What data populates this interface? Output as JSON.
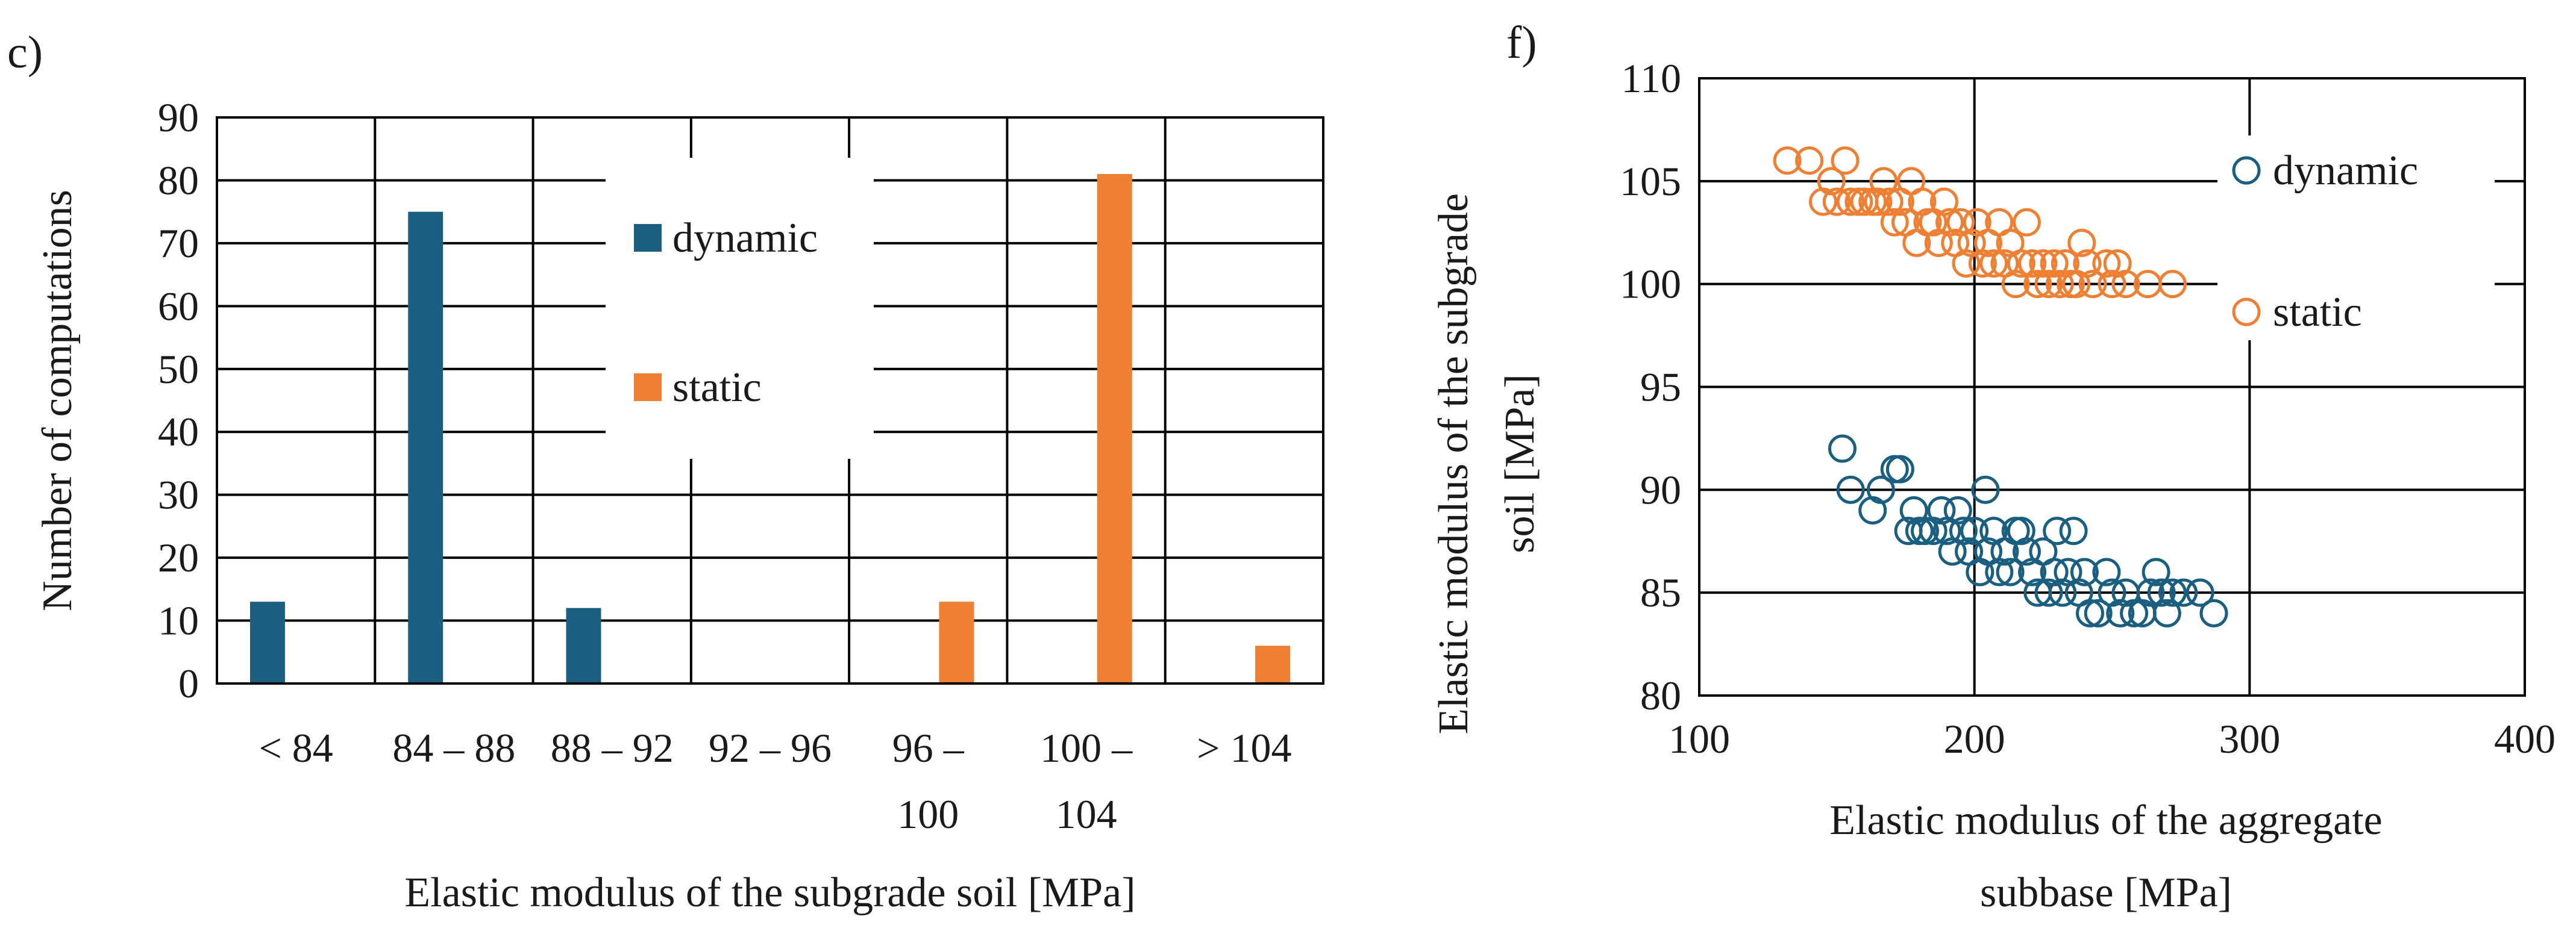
{
  "colors": {
    "dynamic": "#1a5e80",
    "static": "#ee7f33",
    "grid": "#000000"
  },
  "chart_data": [
    {
      "panel": "c)",
      "type": "bar",
      "title": "",
      "xlabel": "Elastic modulus of the subgrade soil [MPa]",
      "ylabel": "Number of computations",
      "ylim": [
        0,
        90
      ],
      "yticks": [
        0,
        10,
        20,
        30,
        40,
        50,
        60,
        70,
        80,
        90
      ],
      "categories": [
        [
          "< 84"
        ],
        [
          "84 – 88"
        ],
        [
          "88 – 92"
        ],
        [
          "92 – 96"
        ],
        [
          "96 –",
          "100"
        ],
        [
          "100 –",
          "104"
        ],
        [
          "> 104"
        ]
      ],
      "series": [
        {
          "name": "dynamic",
          "values": [
            13,
            75,
            12,
            0,
            0,
            0,
            0
          ]
        },
        {
          "name": "static",
          "values": [
            0,
            0,
            0,
            0,
            13,
            81,
            6
          ]
        }
      ],
      "legend": "center"
    },
    {
      "panel": "f)",
      "type": "scatter",
      "title": "",
      "xlabel": [
        "Elastic modulus of the aggregate",
        "subbase [MPa]"
      ],
      "ylabel": [
        "Elastic modulus of the subgrade",
        "soil [MPa]"
      ],
      "xlim": [
        100,
        400
      ],
      "ylim": [
        80,
        110
      ],
      "xticks": [
        100,
        200,
        300,
        400
      ],
      "yticks": [
        80,
        85,
        90,
        95,
        100,
        105,
        110
      ],
      "series": [
        {
          "name": "dynamic",
          "points": [
            [
              152,
              92
            ],
            [
              155,
              90
            ],
            [
              163,
              89
            ],
            [
              166,
              90
            ],
            [
              171,
              91
            ],
            [
              173,
              91
            ],
            [
              176,
              88
            ],
            [
              178,
              89
            ],
            [
              180,
              88
            ],
            [
              182,
              88
            ],
            [
              185,
              88
            ],
            [
              188,
              89
            ],
            [
              190,
              88
            ],
            [
              192,
              87
            ],
            [
              194,
              89
            ],
            [
              196,
              88
            ],
            [
              198,
              87
            ],
            [
              200,
              88
            ],
            [
              202,
              86
            ],
            [
              204,
              90
            ],
            [
              205,
              87
            ],
            [
              207,
              88
            ],
            [
              209,
              86
            ],
            [
              211,
              87
            ],
            [
              213,
              86
            ],
            [
              215,
              88
            ],
            [
              217,
              88
            ],
            [
              219,
              87
            ],
            [
              221,
              86
            ],
            [
              223,
              85
            ],
            [
              225,
              87
            ],
            [
              227,
              85
            ],
            [
              229,
              86
            ],
            [
              230,
              88
            ],
            [
              232,
              85
            ],
            [
              234,
              86
            ],
            [
              236,
              88
            ],
            [
              238,
              85
            ],
            [
              240,
              86
            ],
            [
              242,
              84
            ],
            [
              245,
              84
            ],
            [
              248,
              86
            ],
            [
              250,
              85
            ],
            [
              253,
              84
            ],
            [
              255,
              85
            ],
            [
              258,
              84
            ],
            [
              261,
              84
            ],
            [
              264,
              85
            ],
            [
              266,
              86
            ],
            [
              268,
              85
            ],
            [
              270,
              84
            ],
            [
              272,
              85
            ],
            [
              276,
              85
            ],
            [
              282,
              85
            ],
            [
              287,
              84
            ]
          ]
        },
        {
          "name": "static",
          "points": [
            [
              132,
              106
            ],
            [
              140,
              106
            ],
            [
              145,
              104
            ],
            [
              148,
              105
            ],
            [
              150,
              104
            ],
            [
              153,
              106
            ],
            [
              155,
              104
            ],
            [
              158,
              104
            ],
            [
              160,
              104
            ],
            [
              163,
              104
            ],
            [
              165,
              104
            ],
            [
              167,
              105
            ],
            [
              169,
              104
            ],
            [
              171,
              103
            ],
            [
              173,
              104
            ],
            [
              175,
              103
            ],
            [
              177,
              105
            ],
            [
              179,
              102
            ],
            [
              181,
              104
            ],
            [
              183,
              103
            ],
            [
              185,
              103
            ],
            [
              187,
              102
            ],
            [
              189,
              104
            ],
            [
              191,
              103
            ],
            [
              193,
              102
            ],
            [
              195,
              103
            ],
            [
              197,
              101
            ],
            [
              199,
              102
            ],
            [
              201,
              103
            ],
            [
              203,
              101
            ],
            [
              205,
              102
            ],
            [
              207,
              101
            ],
            [
              209,
              103
            ],
            [
              211,
              101
            ],
            [
              213,
              102
            ],
            [
              215,
              100
            ],
            [
              217,
              101
            ],
            [
              219,
              103
            ],
            [
              221,
              101
            ],
            [
              223,
              100
            ],
            [
              225,
              101
            ],
            [
              227,
              100
            ],
            [
              229,
              101
            ],
            [
              231,
              100
            ],
            [
              233,
              101
            ],
            [
              235,
              100
            ],
            [
              237,
              100
            ],
            [
              239,
              102
            ],
            [
              241,
              101
            ],
            [
              243,
              100
            ],
            [
              248,
              101
            ],
            [
              250,
              100
            ],
            [
              252,
              101
            ],
            [
              255,
              100
            ],
            [
              263,
              100
            ],
            [
              272,
              100
            ]
          ]
        }
      ],
      "legend": "top-right"
    }
  ]
}
